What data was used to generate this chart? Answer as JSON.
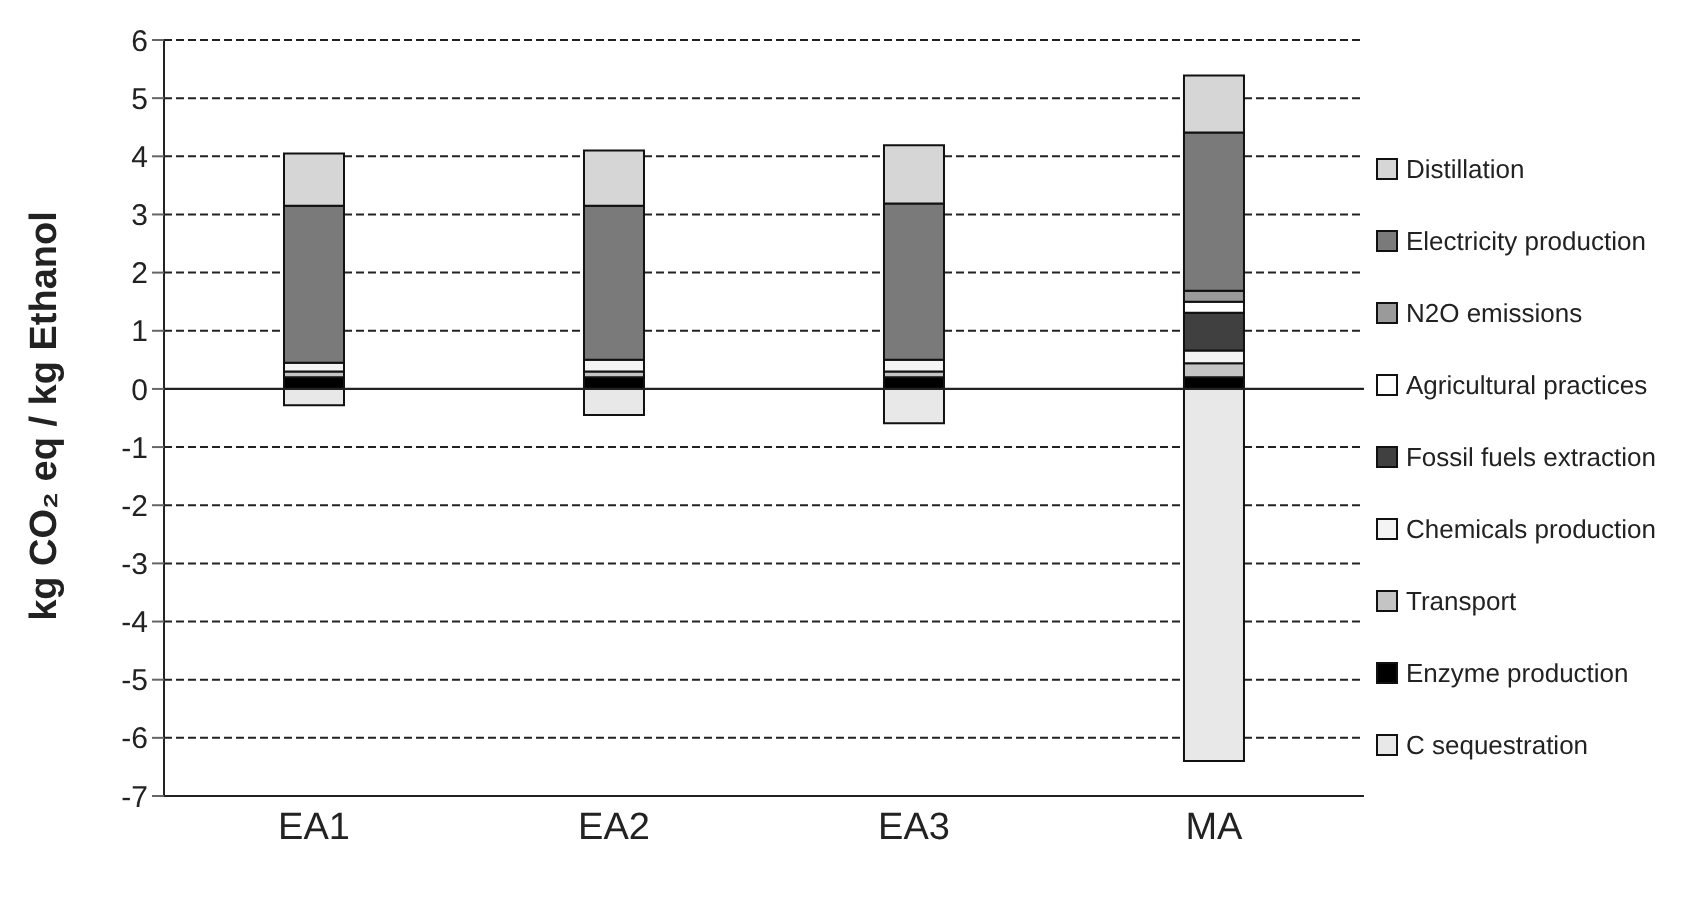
{
  "chart_data": {
    "type": "bar",
    "stacked": true,
    "ylabel": "kg CO₂ eq / kg Ethanol",
    "categories": [
      "EA1",
      "EA2",
      "EA3",
      "MA"
    ],
    "series": [
      {
        "name": "C sequestration",
        "color": "#e8e8e8",
        "values": [
          -0.28,
          -0.45,
          -0.59,
          -6.4
        ]
      },
      {
        "name": "Enzyme production",
        "color": "#000000",
        "values": [
          0.2,
          0.2,
          0.2,
          0.2
        ]
      },
      {
        "name": "Transport",
        "color": "#c4c4c4",
        "values": [
          0.1,
          0.1,
          0.1,
          0.24
        ]
      },
      {
        "name": "Chemicals production",
        "color": "#f4f4f4",
        "values": [
          0.15,
          0.2,
          0.2,
          0.22
        ]
      },
      {
        "name": "Fossil fuels extraction",
        "color": "#404040",
        "values": [
          0,
          0,
          0,
          0.65
        ]
      },
      {
        "name": "Agricultural practices",
        "color": "#ffffff",
        "values": [
          0,
          0,
          0,
          0.19
        ]
      },
      {
        "name": "N2O emissions",
        "color": "#9a9a9a",
        "values": [
          0,
          0,
          0,
          0.19
        ]
      },
      {
        "name": "Electricity production",
        "color": "#7a7a7a",
        "values": [
          2.7,
          2.65,
          2.69,
          2.72
        ]
      },
      {
        "name": "Distillation",
        "color": "#d6d6d6",
        "values": [
          0.9,
          0.95,
          1.0,
          0.98
        ]
      }
    ],
    "ylim": [
      -7,
      6
    ],
    "yticks": [
      -7,
      -6,
      -5,
      -4,
      -3,
      -2,
      -1,
      0,
      1,
      2,
      3,
      4,
      5,
      6
    ],
    "grid": "y",
    "legend": "right"
  }
}
